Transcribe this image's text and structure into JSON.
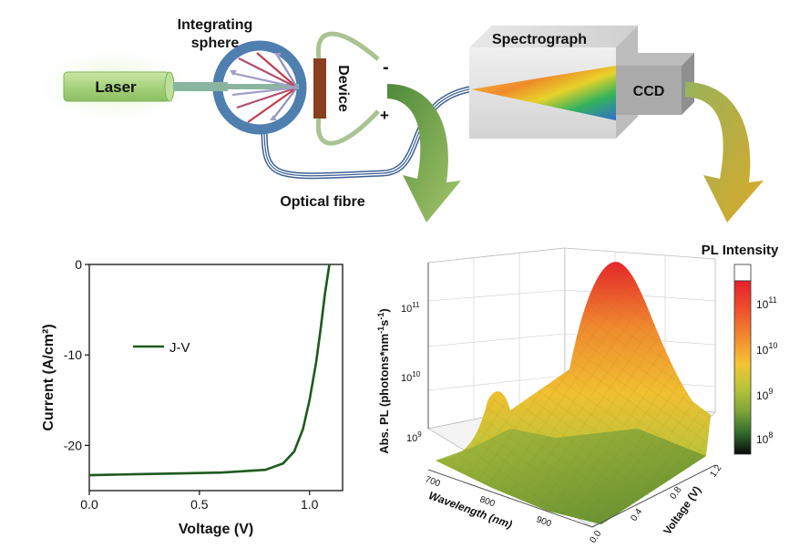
{
  "setup": {
    "laser_label": "Laser",
    "sphere_label_line1": "Integrating",
    "sphere_label_line2": "sphere",
    "device_label": "Device",
    "minus_sign": "-",
    "plus_sign": "+",
    "fibre_label": "Optical fibre",
    "spectrograph_label": "Spectrograph",
    "ccd_label": "CCD"
  },
  "colors": {
    "laser_fill": "#9fd08a",
    "sphere_ring": "#4f7faf",
    "device_fill": "#8a3f1e",
    "arrow_green": "#6f9a45",
    "curve": "#1e5a1e"
  },
  "jv_chart": {
    "chart_data": {
      "type": "line",
      "xlabel": "Voltage (V)",
      "ylabel": "Current (A/cm²)",
      "xlim": [
        0.0,
        1.15
      ],
      "ylim": [
        -25,
        0
      ],
      "xticks": [
        "0.0",
        "0.5",
        "1.0"
      ],
      "xtick_values": [
        0.0,
        0.5,
        1.0
      ],
      "yticks": [
        "0",
        "-10",
        "-20"
      ],
      "ytick_values": [
        0,
        -10,
        -20
      ],
      "legend_position": "top-left",
      "series": [
        {
          "name": "J-V",
          "x": [
            0.0,
            0.2,
            0.4,
            0.6,
            0.8,
            0.88,
            0.93,
            0.97,
            1.0,
            1.03,
            1.05,
            1.07,
            1.09
          ],
          "y": [
            -23.3,
            -23.2,
            -23.1,
            -23.0,
            -22.7,
            -22.0,
            -20.7,
            -18.2,
            -15.0,
            -10.8,
            -7.2,
            -3.2,
            0.0
          ]
        }
      ]
    }
  },
  "pl_chart": {
    "ylabel_prefix": "Abs. PL (photons*nm",
    "ylabel_exp1": "-1",
    "ylabel_mid": "s",
    "ylabel_exp2": "-1",
    "ylabel_suffix": ")",
    "xlabel": "Wavelength (nm)",
    "zlabel": "Voltage (V)",
    "zaxis_ticks": [
      "10",
      "10",
      "10"
    ],
    "zaxis_exps": [
      "11",
      "10",
      "9"
    ],
    "wavelength_ticks": [
      "700",
      "800",
      "900"
    ],
    "voltage_ticks": [
      "0.0",
      "0.4",
      "0.8",
      "1.2"
    ],
    "colorbar_title": "PL Intensity",
    "colorbar_ticks": [
      "10",
      "10",
      "10",
      "10"
    ],
    "colorbar_exps": [
      "11",
      "10",
      "9",
      "8"
    ],
    "colorbar_colors": [
      "#ffffff",
      "#e5202a",
      "#ee4a2e",
      "#f27a2e",
      "#f6a433",
      "#f4c431",
      "#d7cc2f",
      "#b8c43a",
      "#8fae3d",
      "#5a8a33",
      "#2f6a2a",
      "#0a0a0a"
    ]
  }
}
